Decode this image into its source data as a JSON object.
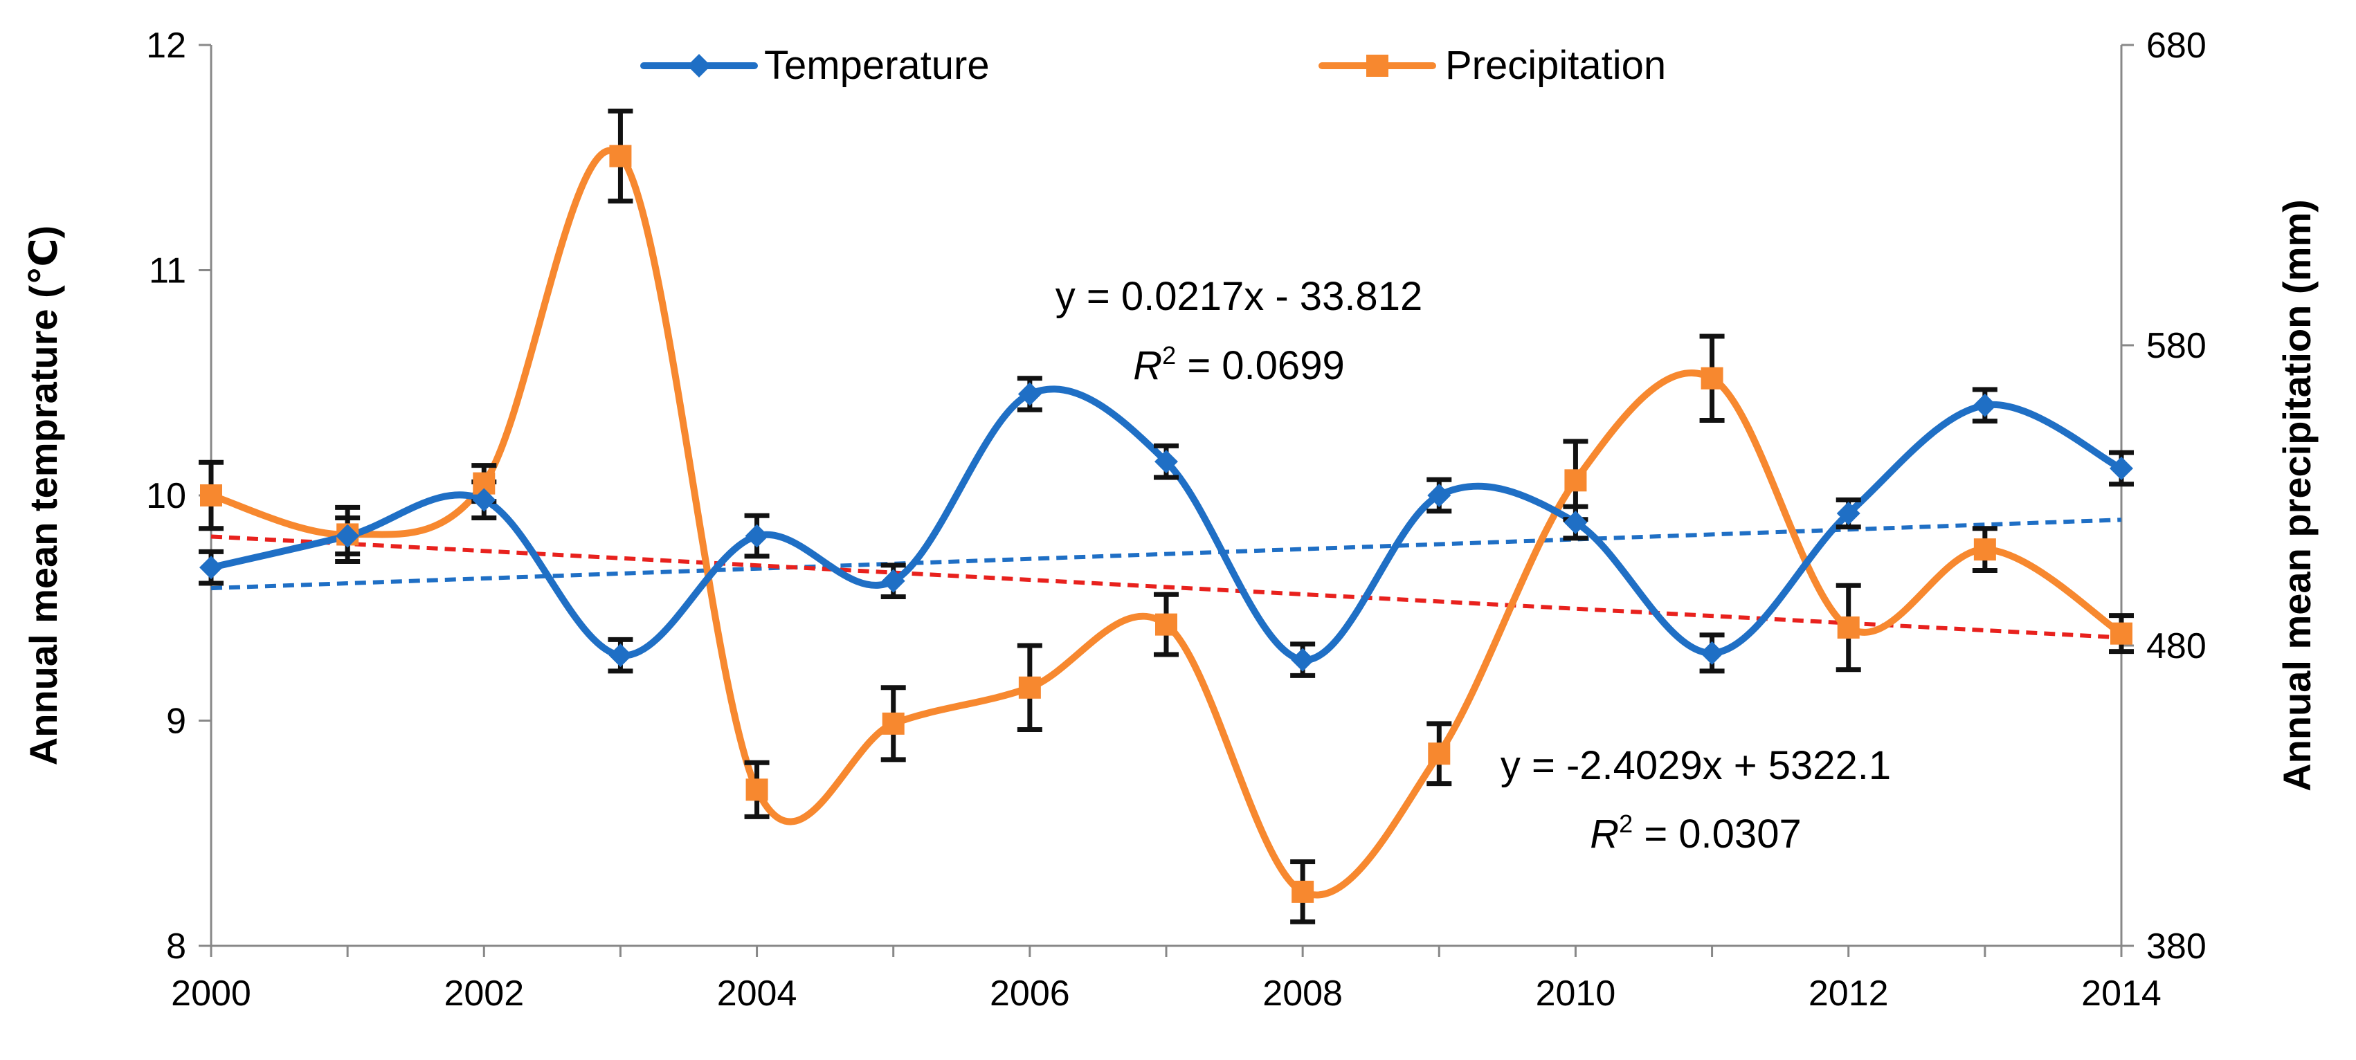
{
  "chart_data": {
    "type": "line",
    "x": [
      2000,
      2001,
      2002,
      2003,
      2004,
      2005,
      2006,
      2007,
      2008,
      2009,
      2010,
      2011,
      2012,
      2013,
      2014
    ],
    "x_ticks": [
      "2000",
      "2002",
      "2004",
      "2006",
      "2008",
      "2010",
      "2012",
      "2014"
    ],
    "xlim": [
      2000,
      2014
    ],
    "y_left": {
      "label": "Annual mean temprature (℃)",
      "ylim": [
        8,
        12
      ],
      "ticks": [
        "8",
        "9",
        "10",
        "11",
        "12"
      ]
    },
    "y_right": {
      "label": "Annual mean precipitation (mm)",
      "ylim": [
        380,
        680
      ],
      "ticks": [
        "380",
        "480",
        "580",
        "680"
      ]
    },
    "grid": false,
    "legend": {
      "placement": "top-center"
    },
    "series": [
      {
        "name": "Temperature",
        "axis": "left",
        "color": "#1f6fc5",
        "marker": "diamond",
        "values": [
          9.68,
          9.82,
          9.98,
          9.29,
          9.82,
          9.62,
          10.45,
          10.15,
          9.27,
          10.0,
          9.88,
          9.3,
          9.92,
          10.4,
          10.12
        ],
        "errors": [
          0.07,
          0.08,
          0.08,
          0.07,
          0.09,
          0.07,
          0.07,
          0.07,
          0.07,
          0.07,
          0.07,
          0.08,
          0.06,
          0.07,
          0.07
        ]
      },
      {
        "name": "Precipitation",
        "axis": "right",
        "color": "#f7882f",
        "marker": "square",
        "values": [
          530,
          517,
          534,
          643,
          432,
          454,
          466,
          487,
          398,
          444,
          535,
          569,
          486,
          512,
          484
        ],
        "errors": [
          11,
          9,
          6,
          15,
          9,
          12,
          14,
          10,
          10,
          10,
          13,
          14,
          14,
          7,
          6
        ]
      }
    ],
    "trendlines": [
      {
        "series": "Temperature",
        "color": "#1f6fc5",
        "slope": 0.0217,
        "intercept": -33.812,
        "equation": "y = 0.0217x - 33.812",
        "r2_label": "R",
        "r2_value": " = 0.0699"
      },
      {
        "series": "Precipitation",
        "color": "#e8211d",
        "slope": -2.4029,
        "intercept": 5322.1,
        "equation": "y = -2.4029x + 5322.1",
        "r2_label": "R",
        "r2_value": " = 0.0307"
      }
    ]
  }
}
